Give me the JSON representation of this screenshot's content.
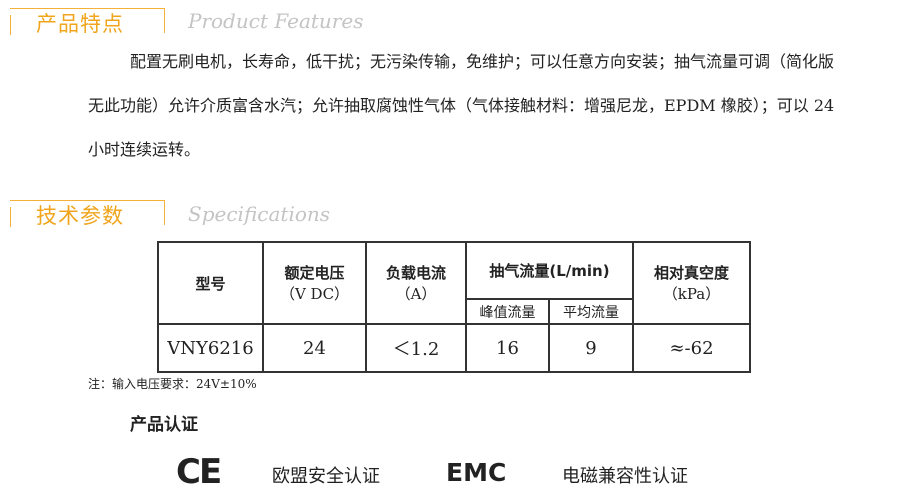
{
  "features": {
    "title_cn": "产品特点",
    "title_en": "Product Features",
    "text": "配置无刷电机，长寿命，低干扰；无污染传输，免维护；可以任意方向安装；抽气流量可调（简化版无此功能）允许介质富含水汽；允许抽取腐蚀性气体（气体接触材料：增强尼龙，EPDM 橡胶）；可以 24 小时连续运转。"
  },
  "specs": {
    "title_cn": "技术参数",
    "title_en": "Specifications",
    "headers": {
      "model": "型号",
      "voltage": "额定电压",
      "voltage_unit": "（V DC）",
      "current": "负载电流",
      "current_unit": "（A）",
      "flow": "抽气流量(L/min)",
      "flow_peak": "峰值流量",
      "flow_avg": "平均流量",
      "vacuum": "相对真空度",
      "vacuum_unit": "（kPa）"
    },
    "row": {
      "model": "VNY6216",
      "voltage": "24",
      "current": "＜1.2",
      "flow_peak": "16",
      "flow_avg": "9",
      "vacuum": "≈-62"
    },
    "note": "注：输入电压要求：24V±10%"
  },
  "certification": {
    "title": "产品认证",
    "ce_logo": "CE",
    "ce_label": "欧盟安全认证",
    "emc_logo": "EMC",
    "emc_label": "电磁兼容性认证"
  },
  "colors": {
    "accent": "#f0a51c"
  }
}
